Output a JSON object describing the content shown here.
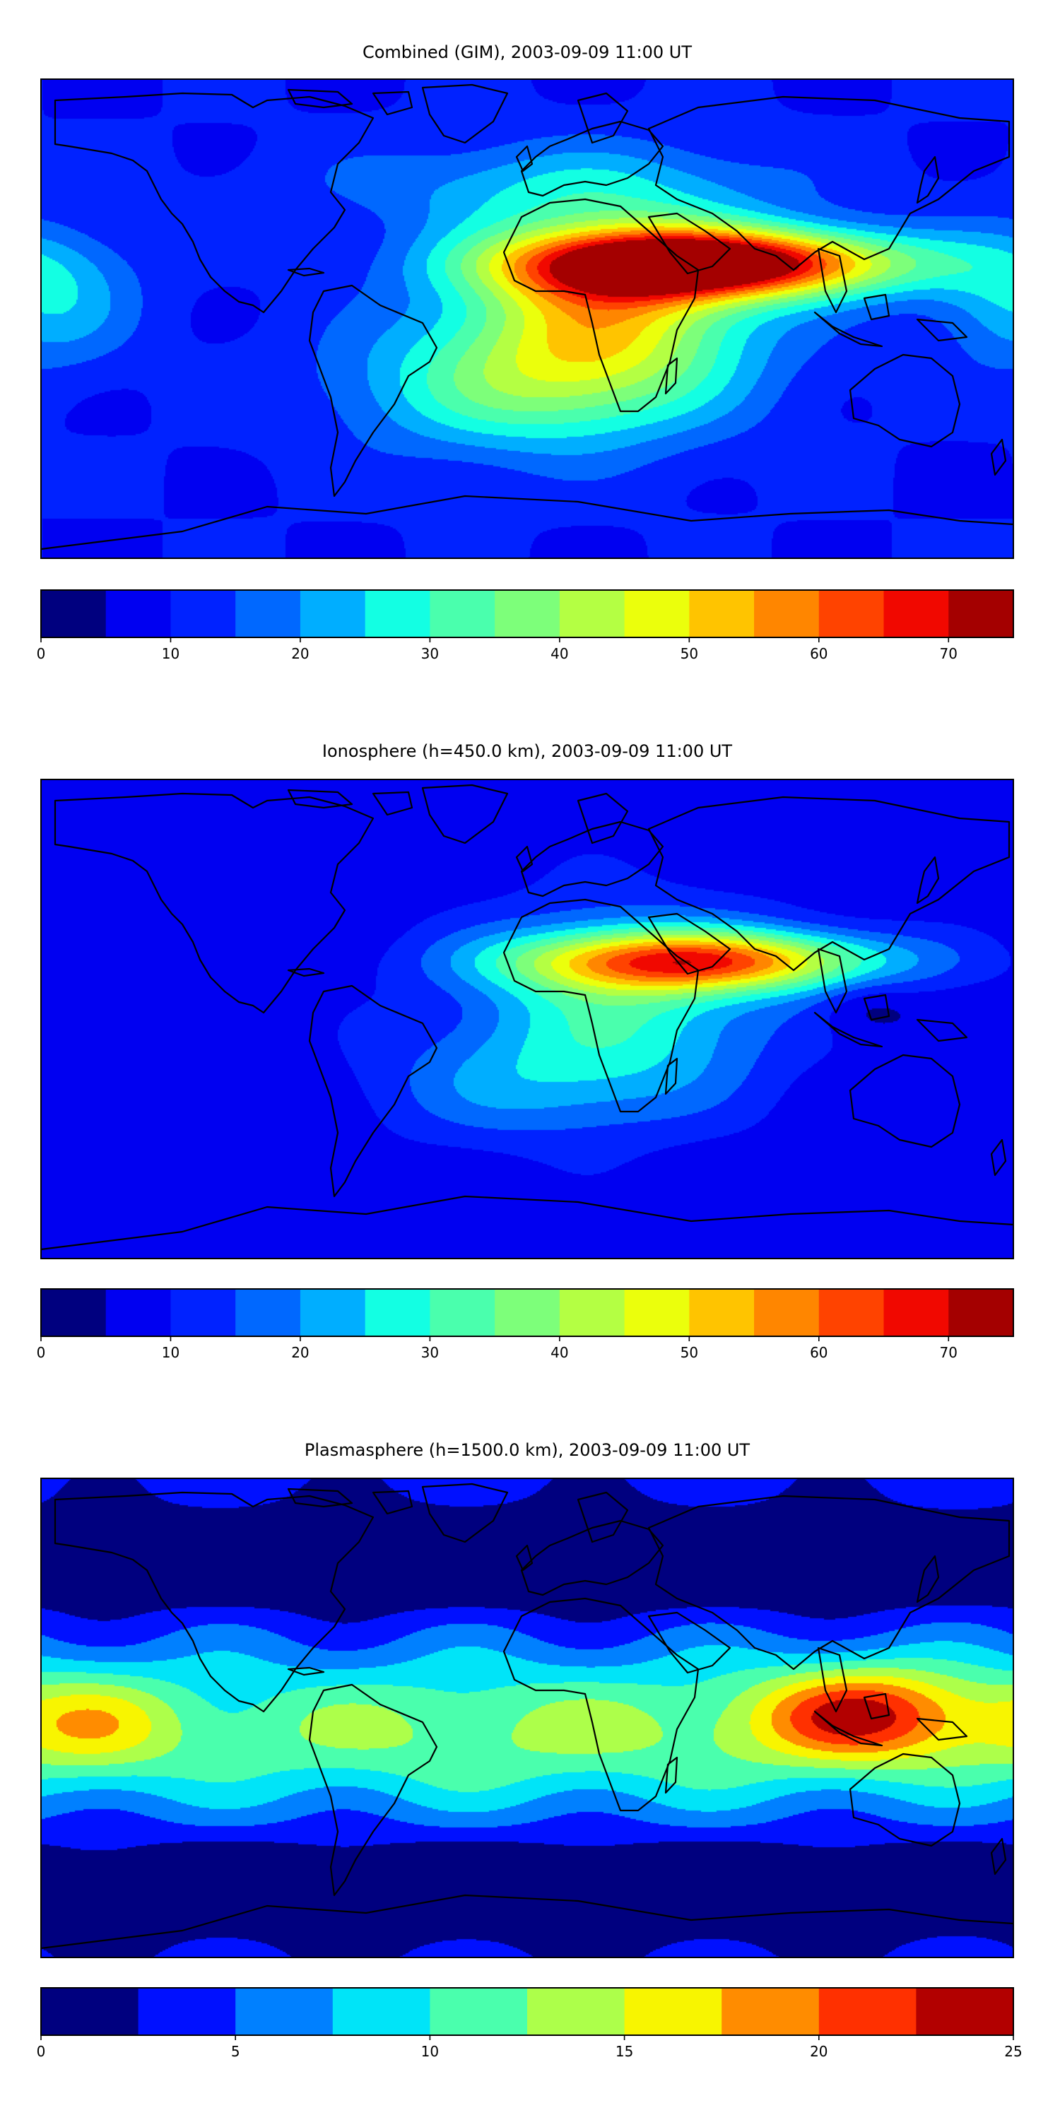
{
  "figure": {
    "panels": [
      {
        "title": "Combined (GIM), 2003-09-09 11:00 UT"
      },
      {
        "title": "Ionosphere  (h=450.0 km), 2003-09-09 11:00 UT"
      },
      {
        "title": "Plasmasphere (h=1500.0 km), 2003-09-09 11:00 UT"
      }
    ]
  },
  "chart_data": [
    {
      "type": "heatmap",
      "subtype": "filled-contour world map (equirectangular) with coastlines",
      "title": "Combined (GIM), 2003-09-09 11:00 UT",
      "colorbar": {
        "levels": [
          0,
          5,
          10,
          15,
          20,
          25,
          30,
          35,
          40,
          45,
          50,
          55,
          60,
          65,
          70,
          75
        ],
        "colors": [
          "#00007f",
          "#0000f1",
          "#0022ff",
          "#0068ff",
          "#00aeff",
          "#13ffe3",
          "#4affad",
          "#7dff7a",
          "#b4ff43",
          "#ebff0c",
          "#ffc400",
          "#ff8600",
          "#ff4300",
          "#f10800",
          "#a40000"
        ],
        "ticks": [
          0,
          10,
          20,
          30,
          40,
          50,
          60,
          70
        ],
        "tick_labels": [
          "0",
          "10",
          "20",
          "30",
          "40",
          "50",
          "60",
          "70"
        ],
        "range": [
          0,
          75
        ]
      },
      "features": [
        {
          "lon": 68,
          "lat": 21,
          "value": 68,
          "sx": 50,
          "sy": 9
        },
        {
          "lon": 30,
          "lat": 5,
          "value": 37,
          "sx": 38,
          "sy": 25
        },
        {
          "lon": -5,
          "lat": -25,
          "value": 20,
          "sx": 45,
          "sy": 18
        },
        {
          "lon": 10,
          "lat": 50,
          "value": 11,
          "sx": 60,
          "sy": 12
        },
        {
          "lon": -178,
          "lat": 8,
          "value": 15,
          "sx": 22,
          "sy": 18
        }
      ],
      "background": 10,
      "grid": false,
      "legend": "none"
    },
    {
      "type": "heatmap",
      "subtype": "filled-contour world map (equirectangular) with coastlines",
      "title": "Ionosphere  (h=450.0 km), 2003-09-09 11:00 UT",
      "colorbar": {
        "levels": [
          0,
          5,
          10,
          15,
          20,
          25,
          30,
          35,
          40,
          45,
          50,
          55,
          60,
          65,
          70,
          75
        ],
        "colors": [
          "#00007f",
          "#0000f1",
          "#0022ff",
          "#0068ff",
          "#00aeff",
          "#13ffe3",
          "#4affad",
          "#7dff7a",
          "#b4ff43",
          "#ebff0c",
          "#ffc400",
          "#ff8600",
          "#ff4300",
          "#f10800",
          "#a40000"
        ],
        "ticks": [
          0,
          10,
          20,
          30,
          40,
          50,
          60,
          70
        ],
        "tick_labels": [
          "0",
          "10",
          "20",
          "30",
          "40",
          "50",
          "60",
          "70"
        ],
        "range": [
          0,
          75
        ]
      },
      "features": [
        {
          "lon": 65,
          "lat": 22,
          "value": 48,
          "sx": 48,
          "sy": 8
        },
        {
          "lon": 35,
          "lat": 5,
          "value": 22,
          "sx": 40,
          "sy": 25
        },
        {
          "lon": -5,
          "lat": -25,
          "value": 10,
          "sx": 40,
          "sy": 15
        },
        {
          "lon": 125,
          "lat": 5,
          "value": -6,
          "sx": 12,
          "sy": 8
        }
      ],
      "background": 7,
      "grid": false,
      "legend": "none"
    },
    {
      "type": "heatmap",
      "subtype": "filled-contour world map (equirectangular) with coastlines",
      "title": "Plasmasphere (h=1500.0 km), 2003-09-09 11:00 UT",
      "colorbar": {
        "levels": [
          0,
          2.5,
          5,
          7.5,
          10,
          12.5,
          15,
          17.5,
          20,
          22.5,
          25
        ],
        "colors": [
          "#00007f",
          "#0010ff",
          "#0080ff",
          "#00e4f8",
          "#4affad",
          "#adff4a",
          "#f8f500",
          "#ff8c00",
          "#ff3000",
          "#b20000"
        ],
        "ticks": [
          0,
          5,
          10,
          15,
          20,
          25
        ],
        "tick_labels": [
          "0",
          "5",
          "10",
          "15",
          "20",
          "25"
        ],
        "range": [
          0,
          25
        ]
      },
      "features": [
        {
          "lon": 0,
          "lat": -5,
          "value": 9,
          "sx": 170,
          "sy": 20
        },
        {
          "lon": 125,
          "lat": 2,
          "value": 13,
          "sx": 28,
          "sy": 13
        },
        {
          "lon": -165,
          "lat": -2,
          "value": 7,
          "sx": 25,
          "sy": 15
        },
        {
          "lon": 0,
          "lat": 60,
          "value": -6,
          "sx": 260,
          "sy": 14
        },
        {
          "lon": 0,
          "lat": -65,
          "value": -6,
          "sx": 260,
          "sy": 14
        }
      ],
      "background": 4,
      "grid": false,
      "legend": "none"
    }
  ]
}
